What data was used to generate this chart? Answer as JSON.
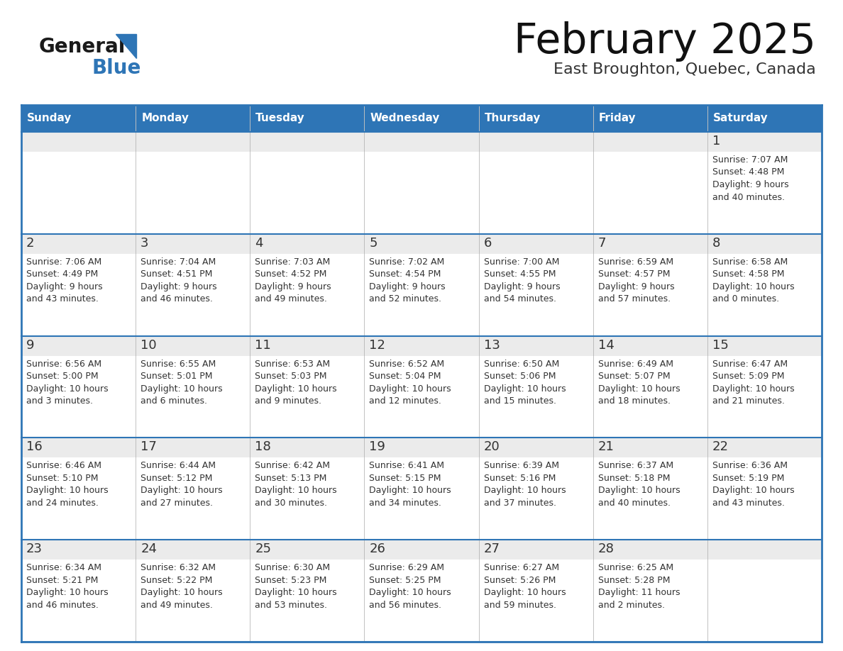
{
  "title": "February 2025",
  "subtitle": "East Broughton, Quebec, Canada",
  "header_bg": "#2E75B6",
  "header_text": "#FFFFFF",
  "header_days": [
    "Sunday",
    "Monday",
    "Tuesday",
    "Wednesday",
    "Thursday",
    "Friday",
    "Saturday"
  ],
  "row_bg_top": "#EBEBEB",
  "row_bg_bottom": "#FFFFFF",
  "cell_text_color": "#333333",
  "day_number_color": "#333333",
  "border_color": "#2E75B6",
  "logo_general_color": "#1A1A1A",
  "logo_blue_color": "#2E75B6",
  "calendar_data": [
    [
      null,
      null,
      null,
      null,
      null,
      null,
      {
        "day": 1,
        "sunrise": "7:07 AM",
        "sunset": "4:48 PM",
        "daylight": "9 hours",
        "daylight2": "and 40 minutes."
      }
    ],
    [
      {
        "day": 2,
        "sunrise": "7:06 AM",
        "sunset": "4:49 PM",
        "daylight": "9 hours",
        "daylight2": "and 43 minutes."
      },
      {
        "day": 3,
        "sunrise": "7:04 AM",
        "sunset": "4:51 PM",
        "daylight": "9 hours",
        "daylight2": "and 46 minutes."
      },
      {
        "day": 4,
        "sunrise": "7:03 AM",
        "sunset": "4:52 PM",
        "daylight": "9 hours",
        "daylight2": "and 49 minutes."
      },
      {
        "day": 5,
        "sunrise": "7:02 AM",
        "sunset": "4:54 PM",
        "daylight": "9 hours",
        "daylight2": "and 52 minutes."
      },
      {
        "day": 6,
        "sunrise": "7:00 AM",
        "sunset": "4:55 PM",
        "daylight": "9 hours",
        "daylight2": "and 54 minutes."
      },
      {
        "day": 7,
        "sunrise": "6:59 AM",
        "sunset": "4:57 PM",
        "daylight": "9 hours",
        "daylight2": "and 57 minutes."
      },
      {
        "day": 8,
        "sunrise": "6:58 AM",
        "sunset": "4:58 PM",
        "daylight": "10 hours",
        "daylight2": "and 0 minutes."
      }
    ],
    [
      {
        "day": 9,
        "sunrise": "6:56 AM",
        "sunset": "5:00 PM",
        "daylight": "10 hours",
        "daylight2": "and 3 minutes."
      },
      {
        "day": 10,
        "sunrise": "6:55 AM",
        "sunset": "5:01 PM",
        "daylight": "10 hours",
        "daylight2": "and 6 minutes."
      },
      {
        "day": 11,
        "sunrise": "6:53 AM",
        "sunset": "5:03 PM",
        "daylight": "10 hours",
        "daylight2": "and 9 minutes."
      },
      {
        "day": 12,
        "sunrise": "6:52 AM",
        "sunset": "5:04 PM",
        "daylight": "10 hours",
        "daylight2": "and 12 minutes."
      },
      {
        "day": 13,
        "sunrise": "6:50 AM",
        "sunset": "5:06 PM",
        "daylight": "10 hours",
        "daylight2": "and 15 minutes."
      },
      {
        "day": 14,
        "sunrise": "6:49 AM",
        "sunset": "5:07 PM",
        "daylight": "10 hours",
        "daylight2": "and 18 minutes."
      },
      {
        "day": 15,
        "sunrise": "6:47 AM",
        "sunset": "5:09 PM",
        "daylight": "10 hours",
        "daylight2": "and 21 minutes."
      }
    ],
    [
      {
        "day": 16,
        "sunrise": "6:46 AM",
        "sunset": "5:10 PM",
        "daylight": "10 hours",
        "daylight2": "and 24 minutes."
      },
      {
        "day": 17,
        "sunrise": "6:44 AM",
        "sunset": "5:12 PM",
        "daylight": "10 hours",
        "daylight2": "and 27 minutes."
      },
      {
        "day": 18,
        "sunrise": "6:42 AM",
        "sunset": "5:13 PM",
        "daylight": "10 hours",
        "daylight2": "and 30 minutes."
      },
      {
        "day": 19,
        "sunrise": "6:41 AM",
        "sunset": "5:15 PM",
        "daylight": "10 hours",
        "daylight2": "and 34 minutes."
      },
      {
        "day": 20,
        "sunrise": "6:39 AM",
        "sunset": "5:16 PM",
        "daylight": "10 hours",
        "daylight2": "and 37 minutes."
      },
      {
        "day": 21,
        "sunrise": "6:37 AM",
        "sunset": "5:18 PM",
        "daylight": "10 hours",
        "daylight2": "and 40 minutes."
      },
      {
        "day": 22,
        "sunrise": "6:36 AM",
        "sunset": "5:19 PM",
        "daylight": "10 hours",
        "daylight2": "and 43 minutes."
      }
    ],
    [
      {
        "day": 23,
        "sunrise": "6:34 AM",
        "sunset": "5:21 PM",
        "daylight": "10 hours",
        "daylight2": "and 46 minutes."
      },
      {
        "day": 24,
        "sunrise": "6:32 AM",
        "sunset": "5:22 PM",
        "daylight": "10 hours",
        "daylight2": "and 49 minutes."
      },
      {
        "day": 25,
        "sunrise": "6:30 AM",
        "sunset": "5:23 PM",
        "daylight": "10 hours",
        "daylight2": "and 53 minutes."
      },
      {
        "day": 26,
        "sunrise": "6:29 AM",
        "sunset": "5:25 PM",
        "daylight": "10 hours",
        "daylight2": "and 56 minutes."
      },
      {
        "day": 27,
        "sunrise": "6:27 AM",
        "sunset": "5:26 PM",
        "daylight": "10 hours",
        "daylight2": "and 59 minutes."
      },
      {
        "day": 28,
        "sunrise": "6:25 AM",
        "sunset": "5:28 PM",
        "daylight": "11 hours",
        "daylight2": "and 2 minutes."
      },
      null
    ]
  ]
}
